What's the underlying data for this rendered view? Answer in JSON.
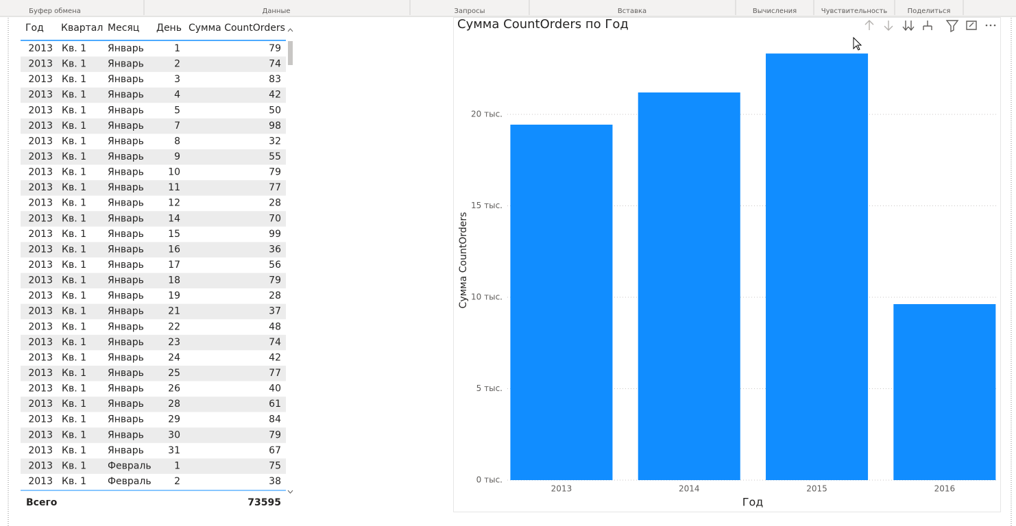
{
  "ribbon": {
    "groups": [
      "Буфер обмена",
      "Данные",
      "Запросы",
      "Вставка",
      "Вычисления",
      "Чувствительность",
      "Поделиться"
    ]
  },
  "table": {
    "columns": [
      "Год",
      "Квартал",
      "Месяц",
      "День",
      "Сумма CountOrders"
    ],
    "rows": [
      [
        2013,
        "Кв. 1",
        "Январь",
        1,
        79
      ],
      [
        2013,
        "Кв. 1",
        "Январь",
        2,
        74
      ],
      [
        2013,
        "Кв. 1",
        "Январь",
        3,
        83
      ],
      [
        2013,
        "Кв. 1",
        "Январь",
        4,
        42
      ],
      [
        2013,
        "Кв. 1",
        "Январь",
        5,
        50
      ],
      [
        2013,
        "Кв. 1",
        "Январь",
        7,
        98
      ],
      [
        2013,
        "Кв. 1",
        "Январь",
        8,
        32
      ],
      [
        2013,
        "Кв. 1",
        "Январь",
        9,
        55
      ],
      [
        2013,
        "Кв. 1",
        "Январь",
        10,
        79
      ],
      [
        2013,
        "Кв. 1",
        "Январь",
        11,
        77
      ],
      [
        2013,
        "Кв. 1",
        "Январь",
        12,
        28
      ],
      [
        2013,
        "Кв. 1",
        "Январь",
        14,
        70
      ],
      [
        2013,
        "Кв. 1",
        "Январь",
        15,
        99
      ],
      [
        2013,
        "Кв. 1",
        "Январь",
        16,
        36
      ],
      [
        2013,
        "Кв. 1",
        "Январь",
        17,
        56
      ],
      [
        2013,
        "Кв. 1",
        "Январь",
        18,
        79
      ],
      [
        2013,
        "Кв. 1",
        "Январь",
        19,
        28
      ],
      [
        2013,
        "Кв. 1",
        "Январь",
        21,
        37
      ],
      [
        2013,
        "Кв. 1",
        "Январь",
        22,
        48
      ],
      [
        2013,
        "Кв. 1",
        "Январь",
        23,
        74
      ],
      [
        2013,
        "Кв. 1",
        "Январь",
        24,
        42
      ],
      [
        2013,
        "Кв. 1",
        "Январь",
        25,
        77
      ],
      [
        2013,
        "Кв. 1",
        "Январь",
        26,
        40
      ],
      [
        2013,
        "Кв. 1",
        "Январь",
        28,
        61
      ],
      [
        2013,
        "Кв. 1",
        "Январь",
        29,
        84
      ],
      [
        2013,
        "Кв. 1",
        "Январь",
        30,
        79
      ],
      [
        2013,
        "Кв. 1",
        "Январь",
        31,
        67
      ],
      [
        2013,
        "Кв. 1",
        "Февраль",
        1,
        75
      ],
      [
        2013,
        "Кв. 1",
        "Февраль",
        2,
        38
      ]
    ],
    "total_label": "Всего",
    "total": 73595
  },
  "chart_data": {
    "type": "bar",
    "title": "Сумма CountOrders по Год",
    "x_label": "Год",
    "y_label": "Сумма CountOrders",
    "categories": [
      "2013",
      "2014",
      "2015",
      "2016"
    ],
    "values": [
      19440,
      21200,
      23330,
      9625
    ],
    "color": "#118DFF",
    "ylim": [
      0,
      23860
    ],
    "yticks": [
      {
        "value": 0,
        "label": "0 тыс."
      },
      {
        "value": 5000,
        "label": "5 тыс."
      },
      {
        "value": 10000,
        "label": "10 тыс."
      },
      {
        "value": 15000,
        "label": "15 тыс."
      },
      {
        "value": 20000,
        "label": "20 тыс."
      }
    ],
    "grid": true
  }
}
